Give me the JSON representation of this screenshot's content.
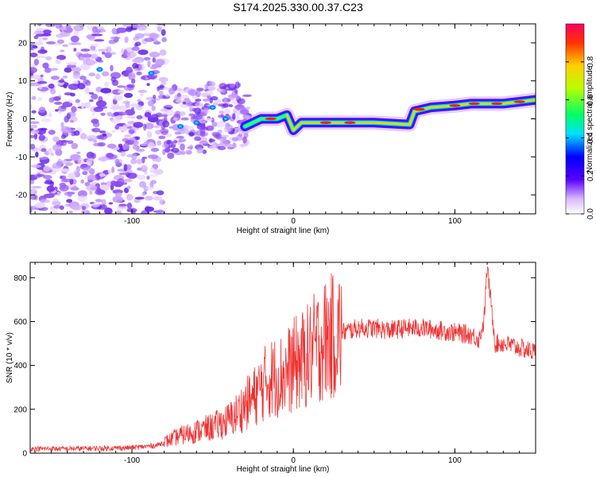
{
  "title": "S174.2025.330.00.37.C23",
  "chart_data": [
    {
      "type": "heatmap",
      "xlabel": "Height of straight line (km)",
      "ylabel": "Frequency (Hz)",
      "xlim": [
        -163,
        150
      ],
      "ylim": [
        -25,
        25
      ],
      "x_ticks": [
        -100,
        0,
        100
      ],
      "y_ticks": [
        -20,
        -10,
        0,
        10,
        20
      ],
      "colorbar": {
        "label": "Normalized spectral amplitude",
        "range": [
          0,
          1
        ],
        "ticks": [
          "0.0",
          "0.2",
          "0.4",
          "0.6",
          "0.8"
        ]
      },
      "ridge": [
        {
          "x": -30,
          "y": -2
        },
        {
          "x": -20,
          "y": 0
        },
        {
          "x": -10,
          "y": 0
        },
        {
          "x": -4,
          "y": 1
        },
        {
          "x": 0,
          "y": -3
        },
        {
          "x": 5,
          "y": -1
        },
        {
          "x": 20,
          "y": -1
        },
        {
          "x": 50,
          "y": -1
        },
        {
          "x": 72,
          "y": -1.5
        },
        {
          "x": 75,
          "y": 2
        },
        {
          "x": 85,
          "y": 3
        },
        {
          "x": 100,
          "y": 3.5
        },
        {
          "x": 110,
          "y": 4
        },
        {
          "x": 130,
          "y": 4
        },
        {
          "x": 150,
          "y": 5
        }
      ]
    },
    {
      "type": "line",
      "xlabel": "Height of straight line (km)",
      "ylabel": "SNR (10 * v/v)",
      "xlim": [
        -163,
        150
      ],
      "ylim": [
        0,
        870
      ],
      "x_ticks": [
        -100,
        0,
        100
      ],
      "y_ticks": [
        0,
        200,
        400,
        600,
        800
      ],
      "series": [
        {
          "name": "SNR",
          "color": "#ee3333",
          "x": [
            -163,
            -140,
            -120,
            -100,
            -85,
            -80,
            -70,
            -60,
            -50,
            -40,
            -35,
            -30,
            -25,
            -20,
            -15,
            -10,
            -5,
            0,
            5,
            10,
            15,
            20,
            30,
            40,
            50,
            60,
            70,
            80,
            90,
            100,
            110,
            115,
            118,
            120,
            125,
            130,
            140,
            150
          ],
          "values": [
            20,
            20,
            22,
            25,
            35,
            50,
            80,
            100,
            120,
            150,
            180,
            220,
            250,
            300,
            340,
            350,
            360,
            400,
            420,
            450,
            490,
            520,
            550,
            570,
            570,
            560,
            570,
            570,
            560,
            550,
            540,
            520,
            600,
            850,
            500,
            500,
            480,
            460
          ]
        }
      ]
    }
  ]
}
